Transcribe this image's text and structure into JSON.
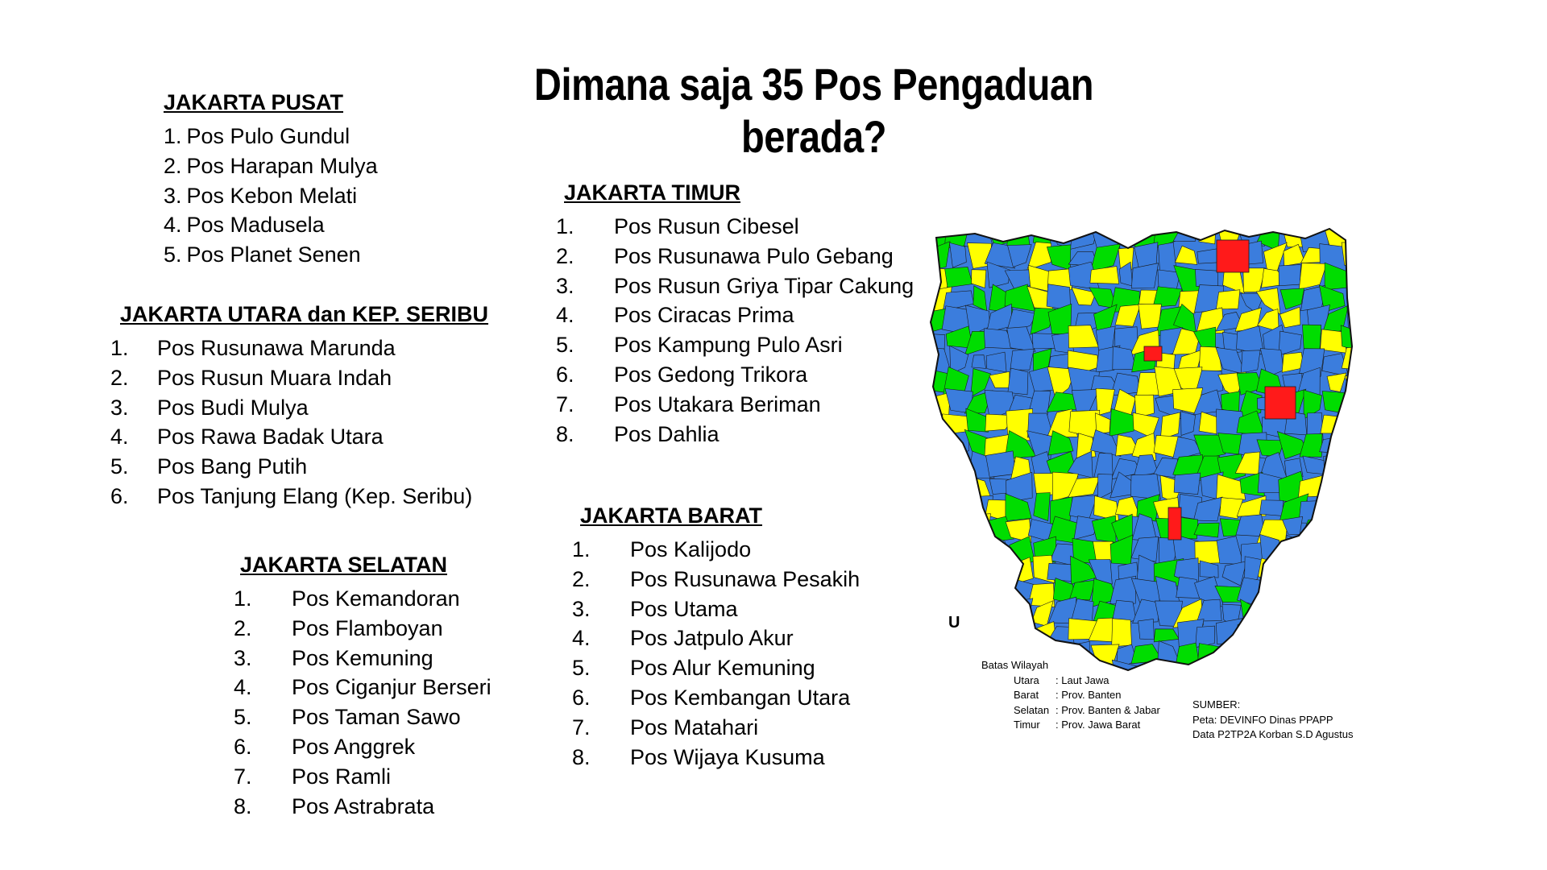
{
  "title": "Dimana saja 35 Pos Pengaduan berada?",
  "sections": {
    "pusat": {
      "heading": "JAKARTA PUSAT",
      "items": [
        "Pos Pulo Gundul",
        "Pos Harapan Mulya",
        "Pos Kebon Melati",
        "Pos Madusela",
        "Pos Planet Senen"
      ]
    },
    "utara": {
      "heading": "JAKARTA UTARA dan KEP. SERIBU",
      "items": [
        "Pos Rusunawa Marunda",
        "Pos Rusun Muara Indah",
        "Pos Budi Mulya",
        "Pos Rawa Badak Utara",
        "Pos Bang Putih",
        "Pos Tanjung Elang (Kep. Seribu)"
      ]
    },
    "selatan": {
      "heading": "JAKARTA SELATAN",
      "items": [
        "Pos Kemandoran",
        "Pos Flamboyan",
        "Pos Kemuning",
        "Pos Ciganjur Berseri",
        "Pos Taman Sawo",
        "Pos Anggrek",
        "Pos Ramli",
        "Pos Astrabrata"
      ]
    },
    "timur": {
      "heading": "JAKARTA TIMUR",
      "items": [
        "Pos Rusun Cibesel",
        "Pos Rusunawa Pulo Gebang",
        "Pos Rusun Griya Tipar Cakung",
        "Pos Ciracas Prima",
        "Pos Kampung Pulo Asri",
        "Pos Gedong Trikora",
        "Pos Utakara Beriman",
        "Pos Dahlia"
      ]
    },
    "barat": {
      "heading": "JAKARTA BARAT",
      "items": [
        "Pos Kalijodo",
        "Pos Rusunawa Pesakih",
        "Pos Utama",
        "Pos Jatpulo Akur",
        "Pos Alur Kemuning",
        "Pos Kembangan Utara",
        "Pos Matahari",
        "Pos Wijaya Kusuma"
      ]
    }
  },
  "map": {
    "north_label": "U",
    "colors": {
      "yellow": "#FFFF00",
      "green": "#00DD00",
      "blue": "#3B7DDD",
      "red": "#FF1A1A",
      "border": "#1a1a1a"
    },
    "boundary": {
      "title": "Batas Wilayah",
      "rows": [
        {
          "dir": "Utara",
          "sep": ":",
          "text": "Laut Jawa"
        },
        {
          "dir": "Barat",
          "sep": ":",
          "text": "Prov. Banten"
        },
        {
          "dir": "Selatan",
          "sep": ":",
          "text": "Prov. Banten & Jabar"
        },
        {
          "dir": "Timur",
          "sep": ":",
          "text": "Prov. Jawa Barat"
        }
      ]
    },
    "source": {
      "title": "SUMBER:",
      "lines": [
        "Peta:  DEVINFO Dinas PPAPP",
        "Data  P2TP2A Korban S.D Agustus"
      ]
    }
  }
}
